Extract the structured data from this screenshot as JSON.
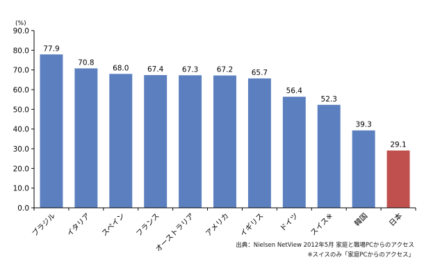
{
  "chart_data": {
    "type": "bar",
    "unit_label": "(%)",
    "categories": [
      "ブラジル",
      "イタリア",
      "スペイン",
      "フランス",
      "オーストラリア",
      "アメリカ",
      "イギリス",
      "ドイツ",
      "スイス※",
      "韓国",
      "日本"
    ],
    "values": [
      77.9,
      70.8,
      68.0,
      67.4,
      67.3,
      67.2,
      65.7,
      56.4,
      52.3,
      39.3,
      29.1
    ],
    "value_labels": [
      "77.9",
      "70.8",
      "68.0",
      "67.4",
      "67.3",
      "67.2",
      "65.7",
      "56.4",
      "52.3",
      "39.3",
      "29.1"
    ],
    "highlight_index": 10,
    "y_ticks": [
      "0.0",
      "10.0",
      "20.0",
      "30.0",
      "40.0",
      "50.0",
      "60.0",
      "70.0",
      "80.0",
      "90.0"
    ],
    "ylim": [
      0,
      90
    ],
    "grid": false,
    "colors": {
      "bar": "#5b7fbf",
      "highlight": "#c0504d"
    }
  },
  "source_notes": {
    "line1": "出典：Nielsen NetView 2012年5月 家庭と職場PCからのアクセス",
    "line2": "※スイスのみ「家庭PCからのアクセス」"
  }
}
